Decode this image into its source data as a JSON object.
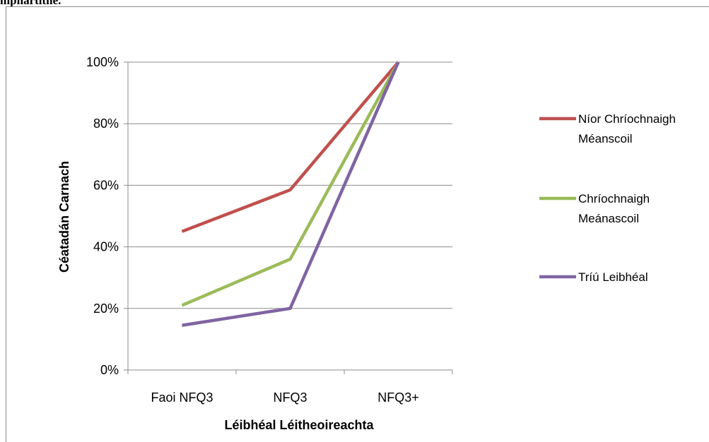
{
  "header_fragment": "mphártithe.",
  "colors": {
    "grid": "#8c8c8c",
    "series_1": "#c0504d",
    "series_2": "#9bbb59",
    "series_3": "#8064a2"
  },
  "chart_data": {
    "type": "line",
    "xlabel": "Léibhéal Léitheoireachta",
    "ylabel": "Céatadán Carnach",
    "categories": [
      "Faoi NFQ3",
      "NFQ3",
      "NFQ3+"
    ],
    "y_ticks": [
      "0%",
      "20%",
      "40%",
      "60%",
      "80%",
      "100%"
    ],
    "ylim": [
      0,
      100
    ],
    "grid": true,
    "legend": "right",
    "series": [
      {
        "name": "Níor Chríochnaigh Méanscoil",
        "lines": [
          "Níor Chríochnaigh",
          "Méanscoil"
        ],
        "color": "#c0504d",
        "values": [
          45,
          58.5,
          100
        ]
      },
      {
        "name": "Chríochnaigh Meánascoil",
        "lines": [
          "Chríochnaigh",
          "Meánascoil"
        ],
        "color": "#9bbb59",
        "values": [
          21,
          36,
          100
        ]
      },
      {
        "name": "Tríú Leibhéal",
        "lines": [
          "Tríú Leibhéal"
        ],
        "color": "#8064a2",
        "values": [
          14.5,
          20,
          100
        ]
      }
    ]
  }
}
